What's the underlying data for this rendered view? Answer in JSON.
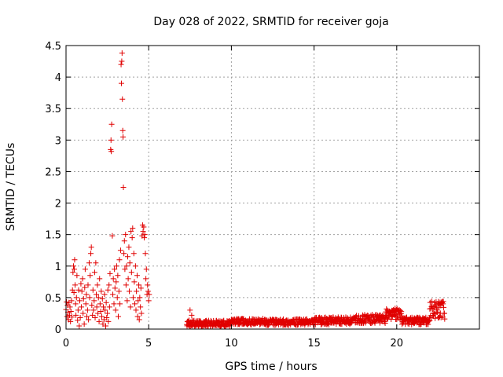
{
  "chart_data": {
    "type": "scatter",
    "title": "Day 028 of 2022, SRMTID for receiver goja",
    "xlabel": "GPS time / hours",
    "ylabel": "SRMTID / TECUs",
    "xlim": [
      0,
      25
    ],
    "ylim": [
      0,
      4.5
    ],
    "xticks": [
      0,
      5,
      10,
      15,
      20
    ],
    "xtick_labels": [
      "0",
      "5",
      "10",
      "15",
      "20"
    ],
    "yticks": [
      0,
      0.5,
      1,
      1.5,
      2,
      2.5,
      3,
      3.5,
      4,
      4.5
    ],
    "ytick_labels": [
      "0",
      "0.5",
      "1",
      "1.5",
      "2",
      "2.5",
      "3",
      "3.5",
      "4",
      "4.5"
    ],
    "grid": true,
    "marker": "+",
    "color": "#e00000",
    "series": [
      {
        "name": "SRMTID",
        "points": [
          [
            0.0,
            0.31
          ],
          [
            0.03,
            0.43
          ],
          [
            0.06,
            0.2
          ],
          [
            0.09,
            0.38
          ],
          [
            0.12,
            0.27
          ],
          [
            0.15,
            0.15
          ],
          [
            0.18,
            0.42
          ],
          [
            0.21,
            0.22
          ],
          [
            0.24,
            0.35
          ],
          [
            0.27,
            0.12
          ],
          [
            0.3,
            0.28
          ],
          [
            0.33,
            0.45
          ],
          [
            0.36,
            0.19
          ],
          [
            0.39,
            0.62
          ],
          [
            0.42,
            0.9
          ],
          [
            0.45,
            1.0
          ],
          [
            0.48,
            0.58
          ],
          [
            0.5,
            0.95
          ],
          [
            0.52,
            1.1
          ],
          [
            0.55,
            0.7
          ],
          [
            0.58,
            0.4
          ],
          [
            0.6,
            0.22
          ],
          [
            0.63,
            0.5
          ],
          [
            0.66,
            0.85
          ],
          [
            0.7,
            0.14
          ],
          [
            0.73,
            0.3
          ],
          [
            0.76,
            0.62
          ],
          [
            0.8,
            0.05
          ],
          [
            0.83,
            0.45
          ],
          [
            0.86,
            0.18
          ],
          [
            0.9,
            0.72
          ],
          [
            0.93,
            0.35
          ],
          [
            0.96,
            0.6
          ],
          [
            1.0,
            0.8
          ],
          [
            1.03,
            0.25
          ],
          [
            1.06,
            0.48
          ],
          [
            1.1,
            0.08
          ],
          [
            1.13,
            0.66
          ],
          [
            1.16,
            0.95
          ],
          [
            1.2,
            0.4
          ],
          [
            1.23,
            0.55
          ],
          [
            1.26,
            0.2
          ],
          [
            1.3,
            0.3
          ],
          [
            1.33,
            0.7
          ],
          [
            1.36,
            0.15
          ],
          [
            1.4,
            1.05
          ],
          [
            1.43,
            0.5
          ],
          [
            1.46,
            0.85
          ],
          [
            1.5,
            1.2
          ],
          [
            1.53,
            1.3
          ],
          [
            1.56,
            0.38
          ],
          [
            1.6,
            0.22
          ],
          [
            1.63,
            0.62
          ],
          [
            1.66,
            0.3
          ],
          [
            1.7,
            0.45
          ],
          [
            1.73,
            0.9
          ],
          [
            1.76,
            0.18
          ],
          [
            1.8,
            1.05
          ],
          [
            1.83,
            0.55
          ],
          [
            1.86,
            0.35
          ],
          [
            1.9,
            0.7
          ],
          [
            1.93,
            0.25
          ],
          [
            1.96,
            0.5
          ],
          [
            2.0,
            0.12
          ],
          [
            2.03,
            0.8
          ],
          [
            2.06,
            0.4
          ],
          [
            2.1,
            0.28
          ],
          [
            2.13,
            0.6
          ],
          [
            2.16,
            0.2
          ],
          [
            2.2,
            0.48
          ],
          [
            2.23,
            0.08
          ],
          [
            2.26,
            0.35
          ],
          [
            2.3,
            0.15
          ],
          [
            2.33,
            0.55
          ],
          [
            2.36,
            0.3
          ],
          [
            2.4,
            0.05
          ],
          [
            2.43,
            0.42
          ],
          [
            2.46,
            0.18
          ],
          [
            2.5,
            0.25
          ],
          [
            2.53,
            0.62
          ],
          [
            2.56,
            0.12
          ],
          [
            2.6,
            0.7
          ],
          [
            2.63,
            0.35
          ],
          [
            2.66,
            0.88
          ],
          [
            2.7,
            2.85
          ],
          [
            2.72,
            3.0
          ],
          [
            2.74,
            2.82
          ],
          [
            2.76,
            3.25
          ],
          [
            2.8,
            1.48
          ],
          [
            2.83,
            0.55
          ],
          [
            2.86,
            0.8
          ],
          [
            2.9,
            0.4
          ],
          [
            2.93,
            0.95
          ],
          [
            2.96,
            0.65
          ],
          [
            3.0,
            0.3
          ],
          [
            3.03,
            0.75
          ],
          [
            3.06,
            1.0
          ],
          [
            3.1,
            0.5
          ],
          [
            3.13,
            0.85
          ],
          [
            3.16,
            0.2
          ],
          [
            3.2,
            0.6
          ],
          [
            3.23,
            1.1
          ],
          [
            3.26,
            0.4
          ],
          [
            3.3,
            1.25
          ],
          [
            3.33,
            4.2
          ],
          [
            3.35,
            3.9
          ],
          [
            3.37,
            4.25
          ],
          [
            3.39,
            4.38
          ],
          [
            3.41,
            3.65
          ],
          [
            3.43,
            3.15
          ],
          [
            3.45,
            3.05
          ],
          [
            3.47,
            2.25
          ],
          [
            3.5,
            1.2
          ],
          [
            3.53,
            1.4
          ],
          [
            3.56,
            0.95
          ],
          [
            3.6,
            1.5
          ],
          [
            3.63,
            0.7
          ],
          [
            3.66,
            1.0
          ],
          [
            3.7,
            0.45
          ],
          [
            3.73,
            1.15
          ],
          [
            3.76,
            0.8
          ],
          [
            3.8,
            1.3
          ],
          [
            3.83,
            0.6
          ],
          [
            3.86,
            1.05
          ],
          [
            3.9,
            0.35
          ],
          [
            3.93,
            1.55
          ],
          [
            3.96,
            0.9
          ],
          [
            4.0,
            1.45
          ],
          [
            4.03,
            1.6
          ],
          [
            4.06,
            0.5
          ],
          [
            4.1,
            1.2
          ],
          [
            4.13,
            0.75
          ],
          [
            4.16,
            0.4
          ],
          [
            4.2,
            1.0
          ],
          [
            4.23,
            0.3
          ],
          [
            4.26,
            0.6
          ],
          [
            4.3,
            0.85
          ],
          [
            4.33,
            0.2
          ],
          [
            4.36,
            0.45
          ],
          [
            4.4,
            0.7
          ],
          [
            4.43,
            0.15
          ],
          [
            4.46,
            0.5
          ],
          [
            4.5,
            0.35
          ],
          [
            4.53,
            0.65
          ],
          [
            4.56,
            0.25
          ],
          [
            4.6,
            1.48
          ],
          [
            4.63,
            1.65
          ],
          [
            4.66,
            1.55
          ],
          [
            4.7,
            1.62
          ],
          [
            4.73,
            1.45
          ],
          [
            4.76,
            1.5
          ],
          [
            4.8,
            1.2
          ],
          [
            4.83,
            0.8
          ],
          [
            4.86,
            0.95
          ],
          [
            4.9,
            0.55
          ],
          [
            4.93,
            0.7
          ],
          [
            4.96,
            0.6
          ],
          [
            5.0,
            0.45
          ],
          [
            5.03,
            0.55
          ],
          [
            7.5,
            0.3
          ],
          [
            7.6,
            0.22
          ]
        ],
        "baseline_segments": [
          {
            "x_start": 7.3,
            "x_end": 10.0,
            "level": 0.09,
            "spread": 0.05
          },
          {
            "x_start": 10.0,
            "x_end": 12.0,
            "level": 0.12,
            "spread": 0.05
          },
          {
            "x_start": 12.0,
            "x_end": 15.0,
            "level": 0.11,
            "spread": 0.05
          },
          {
            "x_start": 15.0,
            "x_end": 17.5,
            "level": 0.13,
            "spread": 0.06
          },
          {
            "x_start": 17.5,
            "x_end": 19.3,
            "level": 0.16,
            "spread": 0.07
          },
          {
            "x_start": 19.3,
            "x_end": 20.3,
            "level": 0.24,
            "spread": 0.09
          },
          {
            "x_start": 20.3,
            "x_end": 22.0,
            "level": 0.13,
            "spread": 0.06
          },
          {
            "x_start": 22.0,
            "x_end": 22.9,
            "level": 0.3,
            "spread": 0.14
          }
        ]
      }
    ]
  }
}
